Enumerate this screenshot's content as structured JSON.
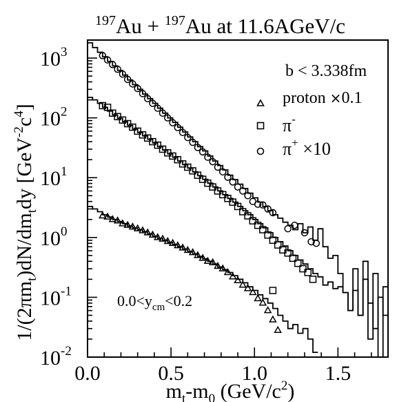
{
  "chart_data": {
    "type": "scatter",
    "title_parts": [
      "197",
      "Au + ",
      "197",
      "Au at 11.6AGeV/c"
    ],
    "xlabel_parts": [
      "m",
      "t",
      "-m",
      "0",
      " (GeV/c",
      "2",
      ")"
    ],
    "ylabel_parts": [
      "1/(2",
      "π",
      "m",
      "t",
      ")dN/dm",
      "t",
      "dy [GeV",
      "-2",
      "c",
      "4",
      "]"
    ],
    "xlim": [
      0.0,
      1.8
    ],
    "ylim": [
      0.01,
      2000
    ],
    "yscale": "log",
    "x_ticks": [
      {
        "value": 0.0,
        "label": "0.0"
      },
      {
        "value": 0.5,
        "label": "0.5"
      },
      {
        "value": 1.0,
        "label": "1.0"
      },
      {
        "value": 1.5,
        "label": "1.5"
      }
    ],
    "y_ticks": [
      {
        "value": 0.01,
        "base": "10",
        "exp": "-2"
      },
      {
        "value": 0.1,
        "base": "10",
        "exp": "-1"
      },
      {
        "value": 1,
        "base": "10",
        "exp": "0"
      },
      {
        "value": 10,
        "base": "10",
        "exp": "1"
      },
      {
        "value": 100,
        "base": "10",
        "exp": "2"
      },
      {
        "value": 1000,
        "base": "10",
        "exp": "3"
      }
    ],
    "annotations": {
      "impact": "b < 3.338fm",
      "rapidity_parts": [
        "0.0<y",
        "cm",
        "<0.2"
      ]
    },
    "legend_position": "top-right",
    "series": [
      {
        "name": "proton ×0.1",
        "legend_parts": [
          "proton ",
          "×",
          "0.1"
        ],
        "marker": "triangle",
        "points": [
          [
            0.09,
            2.3
          ],
          [
            0.12,
            2.2
          ],
          [
            0.15,
            2.0
          ],
          [
            0.18,
            1.9
          ],
          [
            0.21,
            1.7
          ],
          [
            0.24,
            1.6
          ],
          [
            0.27,
            1.5
          ],
          [
            0.3,
            1.4
          ],
          [
            0.33,
            1.3
          ],
          [
            0.36,
            1.2
          ],
          [
            0.39,
            1.1
          ],
          [
            0.42,
            1.0
          ],
          [
            0.45,
            0.94
          ],
          [
            0.48,
            0.86
          ],
          [
            0.51,
            0.8
          ],
          [
            0.54,
            0.73
          ],
          [
            0.57,
            0.67
          ],
          [
            0.6,
            0.61
          ],
          [
            0.63,
            0.56
          ],
          [
            0.66,
            0.5
          ],
          [
            0.69,
            0.45
          ],
          [
            0.72,
            0.4
          ],
          [
            0.75,
            0.38
          ],
          [
            0.78,
            0.33
          ],
          [
            0.81,
            0.3
          ],
          [
            0.84,
            0.26
          ],
          [
            0.87,
            0.22
          ],
          [
            0.9,
            0.19
          ],
          [
            0.93,
            0.16
          ],
          [
            0.96,
            0.14
          ],
          [
            0.99,
            0.12
          ],
          [
            1.02,
            0.095
          ],
          [
            1.05,
            0.08
          ],
          [
            1.08,
            0.06
          ],
          [
            1.11,
            0.042
          ],
          [
            1.14,
            0.028
          ]
        ]
      },
      {
        "name": "π⁻",
        "legend_parts": [
          "π",
          "-"
        ],
        "marker": "square",
        "points": [
          [
            0.09,
            160
          ],
          [
            0.12,
            150
          ],
          [
            0.15,
            120
          ],
          [
            0.18,
            105
          ],
          [
            0.21,
            92
          ],
          [
            0.24,
            80
          ],
          [
            0.27,
            70
          ],
          [
            0.3,
            60
          ],
          [
            0.33,
            52
          ],
          [
            0.36,
            46
          ],
          [
            0.39,
            40
          ],
          [
            0.42,
            35
          ],
          [
            0.45,
            30
          ],
          [
            0.48,
            26
          ],
          [
            0.51,
            23
          ],
          [
            0.54,
            20
          ],
          [
            0.57,
            17
          ],
          [
            0.6,
            15
          ],
          [
            0.63,
            13
          ],
          [
            0.66,
            11
          ],
          [
            0.69,
            9.4
          ],
          [
            0.72,
            8.1
          ],
          [
            0.75,
            7.0
          ],
          [
            0.78,
            6.0
          ],
          [
            0.81,
            5.2
          ],
          [
            0.84,
            4.5
          ],
          [
            0.87,
            3.9
          ],
          [
            0.9,
            3.3
          ],
          [
            0.93,
            2.7
          ],
          [
            0.96,
            2.3
          ],
          [
            0.99,
            1.9
          ],
          [
            1.02,
            1.6
          ],
          [
            1.05,
            1.35
          ],
          [
            1.08,
            1.1
          ],
          [
            1.11,
            0.9
          ],
          [
            1.14,
            0.75
          ],
          [
            1.17,
            0.62
          ],
          [
            1.2,
            0.55
          ],
          [
            1.23,
            0.45
          ],
          [
            1.26,
            0.37
          ],
          [
            1.29,
            0.3
          ],
          [
            1.32,
            0.26
          ],
          [
            1.35,
            0.2
          ],
          [
            1.11,
            0.13
          ]
        ]
      },
      {
        "name": "π⁺ ×10",
        "legend_parts": [
          "π",
          "+",
          " ×10"
        ],
        "marker": "circle",
        "points": [
          [
            0.09,
            1100
          ],
          [
            0.12,
            930
          ],
          [
            0.15,
            780
          ],
          [
            0.18,
            650
          ],
          [
            0.21,
            540
          ],
          [
            0.24,
            440
          ],
          [
            0.27,
            370
          ],
          [
            0.3,
            310
          ],
          [
            0.33,
            255
          ],
          [
            0.36,
            210
          ],
          [
            0.39,
            175
          ],
          [
            0.42,
            145
          ],
          [
            0.45,
            120
          ],
          [
            0.48,
            100
          ],
          [
            0.51,
            83
          ],
          [
            0.54,
            69
          ],
          [
            0.57,
            57
          ],
          [
            0.6,
            47
          ],
          [
            0.63,
            39
          ],
          [
            0.66,
            32
          ],
          [
            0.69,
            27
          ],
          [
            0.72,
            22
          ],
          [
            0.75,
            18.5
          ],
          [
            0.78,
            15
          ],
          [
            0.81,
            12.5
          ],
          [
            0.84,
            10.2
          ],
          [
            0.87,
            8.5
          ],
          [
            0.9,
            7.0
          ],
          [
            0.93,
            6.0
          ],
          [
            0.96,
            5.0
          ],
          [
            0.99,
            4.0
          ],
          [
            1.02,
            3.6
          ],
          [
            1.05,
            3.5
          ],
          [
            1.08,
            3.0
          ],
          [
            1.11,
            2.6
          ],
          [
            1.2,
            1.4
          ],
          [
            1.24,
            1.6
          ],
          [
            1.3,
            1.2
          ],
          [
            1.34,
            0.85
          ],
          [
            1.37,
            0.8
          ]
        ]
      }
    ],
    "histograms": [
      {
        "name": "proton-histogram",
        "edges": [
          0.0,
          0.03,
          0.06,
          0.09,
          0.12,
          0.15,
          0.18,
          0.21,
          0.24,
          0.27,
          0.3,
          0.33,
          0.36,
          0.39,
          0.42,
          0.45,
          0.48,
          0.51,
          0.54,
          0.57,
          0.6,
          0.63,
          0.66,
          0.69,
          0.72,
          0.75,
          0.78,
          0.81,
          0.84,
          0.87,
          0.9,
          0.93,
          0.96,
          0.99,
          1.02,
          1.05,
          1.08,
          1.11,
          1.14,
          1.17,
          1.2,
          1.23,
          1.26,
          1.29,
          1.32,
          1.35,
          1.38
        ],
        "values": [
          3.3,
          3.0,
          2.7,
          2.4,
          2.2,
          2.0,
          1.85,
          1.7,
          1.55,
          1.45,
          1.35,
          1.25,
          1.15,
          1.05,
          0.97,
          0.9,
          0.83,
          0.76,
          0.7,
          0.64,
          0.58,
          0.53,
          0.48,
          0.44,
          0.4,
          0.36,
          0.32,
          0.29,
          0.26,
          0.23,
          0.2,
          0.175,
          0.15,
          0.13,
          0.11,
          0.095,
          0.08,
          0.065,
          0.05,
          0.04,
          0.03,
          0.035,
          0.025,
          0.03,
          0.02,
          0.012
        ]
      },
      {
        "name": "pi-minus-histogram",
        "edges": [
          0.0,
          0.03,
          0.06,
          0.09,
          0.12,
          0.15,
          0.18,
          0.21,
          0.24,
          0.27,
          0.3,
          0.33,
          0.36,
          0.39,
          0.42,
          0.45,
          0.48,
          0.51,
          0.54,
          0.57,
          0.6,
          0.63,
          0.66,
          0.69,
          0.72,
          0.75,
          0.78,
          0.81,
          0.84,
          0.87,
          0.9,
          0.93,
          0.96,
          0.99,
          1.02,
          1.05,
          1.08,
          1.11,
          1.14,
          1.17,
          1.2,
          1.23,
          1.26,
          1.29,
          1.32,
          1.35,
          1.38,
          1.41,
          1.44,
          1.47,
          1.5,
          1.53,
          1.56,
          1.59,
          1.62,
          1.65,
          1.68,
          1.71,
          1.74,
          1.77,
          1.8
        ],
        "values": [
          220,
          200,
          175,
          150,
          130,
          112,
          98,
          86,
          75,
          65,
          57,
          50,
          44,
          38,
          33,
          29,
          25,
          22,
          19,
          16.5,
          14.5,
          12.5,
          10.8,
          9.4,
          8.1,
          7.0,
          6.0,
          5.2,
          4.5,
          3.9,
          3.3,
          2.8,
          2.4,
          2.0,
          1.7,
          1.45,
          1.2,
          1.0,
          0.85,
          0.72,
          0.6,
          0.5,
          0.42,
          0.36,
          0.3,
          0.25,
          0.22,
          0.16,
          0.18,
          0.14,
          0.15,
          0.12,
          0.06,
          0.13,
          0.05,
          0.2,
          0.08,
          0.03,
          0.1,
          0.05
        ]
      },
      {
        "name": "pi-plus-histogram",
        "edges": [
          0.0,
          0.03,
          0.06,
          0.09,
          0.12,
          0.15,
          0.18,
          0.21,
          0.24,
          0.27,
          0.3,
          0.33,
          0.36,
          0.39,
          0.42,
          0.45,
          0.48,
          0.51,
          0.54,
          0.57,
          0.6,
          0.63,
          0.66,
          0.69,
          0.72,
          0.75,
          0.78,
          0.81,
          0.84,
          0.87,
          0.9,
          0.93,
          0.96,
          0.99,
          1.02,
          1.05,
          1.08,
          1.11,
          1.14,
          1.17,
          1.2,
          1.23,
          1.26,
          1.29,
          1.32,
          1.35,
          1.38,
          1.41,
          1.44,
          1.47,
          1.5,
          1.53,
          1.56,
          1.59,
          1.62,
          1.65,
          1.68,
          1.71,
          1.74,
          1.77,
          1.8
        ],
        "values": [
          1800,
          1500,
          1250,
          1050,
          880,
          740,
          620,
          520,
          430,
          360,
          300,
          250,
          210,
          175,
          145,
          120,
          100,
          84,
          70,
          58,
          48,
          40,
          33,
          28,
          23,
          19,
          16,
          13.5,
          11,
          9.3,
          7.8,
          6.6,
          5.5,
          4.6,
          3.9,
          3.3,
          2.8,
          2.4,
          2.1,
          1.8,
          1.6,
          1.35,
          1.7,
          1.2,
          1.5,
          0.9,
          1.4,
          0.7,
          0.45,
          0.5,
          0.25,
          0.12,
          0.06,
          0.3,
          0.05,
          0.4,
          0.02,
          0.25,
          0.01,
          0.15,
          0.05
        ]
      }
    ]
  }
}
